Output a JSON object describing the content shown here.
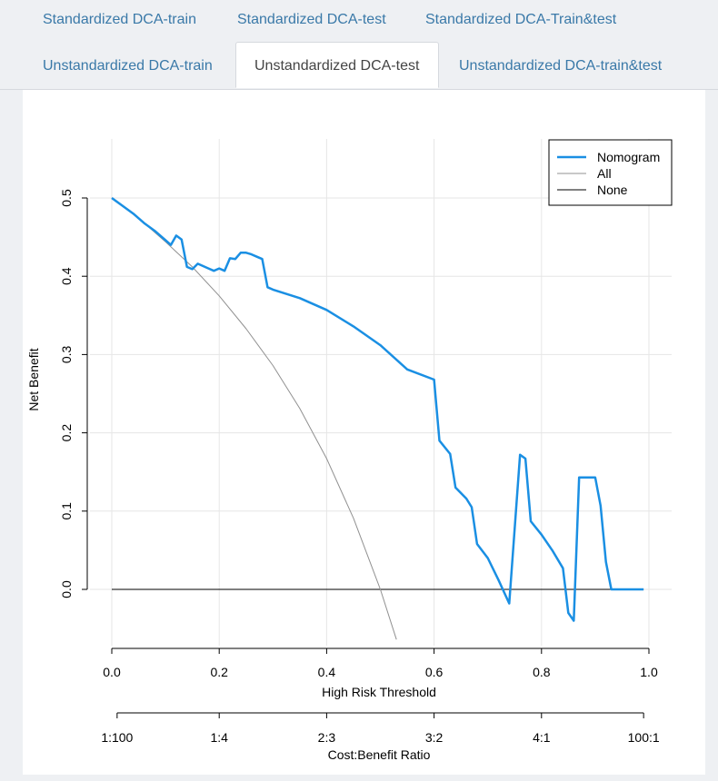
{
  "tabs": {
    "row1": [
      "Standardized DCA-train",
      "Standardized DCA-test",
      "Standardized DCA-Train&test"
    ],
    "row2": [
      "Unstandardized DCA-train",
      "Unstandardized DCA-test",
      "Unstandardized DCA-train&test"
    ],
    "active": "Unstandardized DCA-test"
  },
  "colors": {
    "nomogram": "#1a8fe3",
    "all": "#909090",
    "none": "#000000",
    "tab_link": "#3a79a8"
  },
  "chart_data": {
    "type": "line",
    "title": "",
    "xlabel": "High Risk Threshold",
    "ylabel": "Net Benefit",
    "xlim": [
      0,
      1.0
    ],
    "ylim": [
      -0.075,
      0.575
    ],
    "x_ticks": [
      "0.0",
      "0.2",
      "0.4",
      "0.6",
      "0.8",
      "1.0"
    ],
    "x_tick_values": [
      0,
      0.2,
      0.4,
      0.6,
      0.8,
      1.0
    ],
    "y_ticks": [
      "0.0",
      "0.1",
      "0.2",
      "0.3",
      "0.4",
      "0.5"
    ],
    "y_tick_values": [
      0,
      0.1,
      0.2,
      0.3,
      0.4,
      0.5
    ],
    "grid": true,
    "legend": [
      "Nomogram",
      "All",
      "None"
    ],
    "legend_position": "top-right",
    "secondary_axis": {
      "label": "Cost:Benefit Ratio",
      "ticks": [
        "1:100",
        "1:4",
        "2:3",
        "3:2",
        "4:1",
        "100:1"
      ],
      "tick_values": [
        0.0099,
        0.2,
        0.4,
        0.6,
        0.8,
        0.9901
      ]
    },
    "series": [
      {
        "name": "Nomogram",
        "x": [
          0.0,
          0.02,
          0.04,
          0.06,
          0.08,
          0.1,
          0.11,
          0.12,
          0.13,
          0.14,
          0.15,
          0.16,
          0.17,
          0.18,
          0.19,
          0.2,
          0.21,
          0.22,
          0.23,
          0.24,
          0.25,
          0.26,
          0.27,
          0.28,
          0.29,
          0.3,
          0.35,
          0.4,
          0.45,
          0.5,
          0.55,
          0.6,
          0.61,
          0.63,
          0.64,
          0.66,
          0.67,
          0.68,
          0.7,
          0.72,
          0.74,
          0.76,
          0.77,
          0.78,
          0.8,
          0.82,
          0.84,
          0.85,
          0.86,
          0.87,
          0.88,
          0.89,
          0.9,
          0.91,
          0.92,
          0.93,
          0.95,
          0.99
        ],
        "y": [
          0.5,
          0.49,
          0.48,
          0.468,
          0.458,
          0.446,
          0.44,
          0.452,
          0.447,
          0.412,
          0.409,
          0.416,
          0.413,
          0.41,
          0.407,
          0.41,
          0.407,
          0.423,
          0.422,
          0.43,
          0.43,
          0.428,
          0.425,
          0.422,
          0.386,
          0.383,
          0.372,
          0.357,
          0.336,
          0.312,
          0.281,
          0.268,
          0.19,
          0.173,
          0.13,
          0.116,
          0.105,
          0.058,
          0.04,
          0.012,
          -0.018,
          0.172,
          0.167,
          0.087,
          0.07,
          0.05,
          0.027,
          -0.03,
          -0.04,
          0.143,
          0.143,
          0.143,
          0.143,
          0.107,
          0.035,
          0.0,
          0.0,
          0.0
        ]
      },
      {
        "name": "All",
        "x": [
          0.0,
          0.05,
          0.1,
          0.15,
          0.2,
          0.25,
          0.3,
          0.35,
          0.4,
          0.45,
          0.5,
          0.53
        ],
        "y": [
          0.5,
          0.474,
          0.444,
          0.412,
          0.375,
          0.333,
          0.286,
          0.231,
          0.167,
          0.091,
          0.0,
          -0.064
        ]
      },
      {
        "name": "None",
        "x": [
          0.0,
          0.99
        ],
        "y": [
          0.0,
          0.0
        ]
      }
    ]
  }
}
